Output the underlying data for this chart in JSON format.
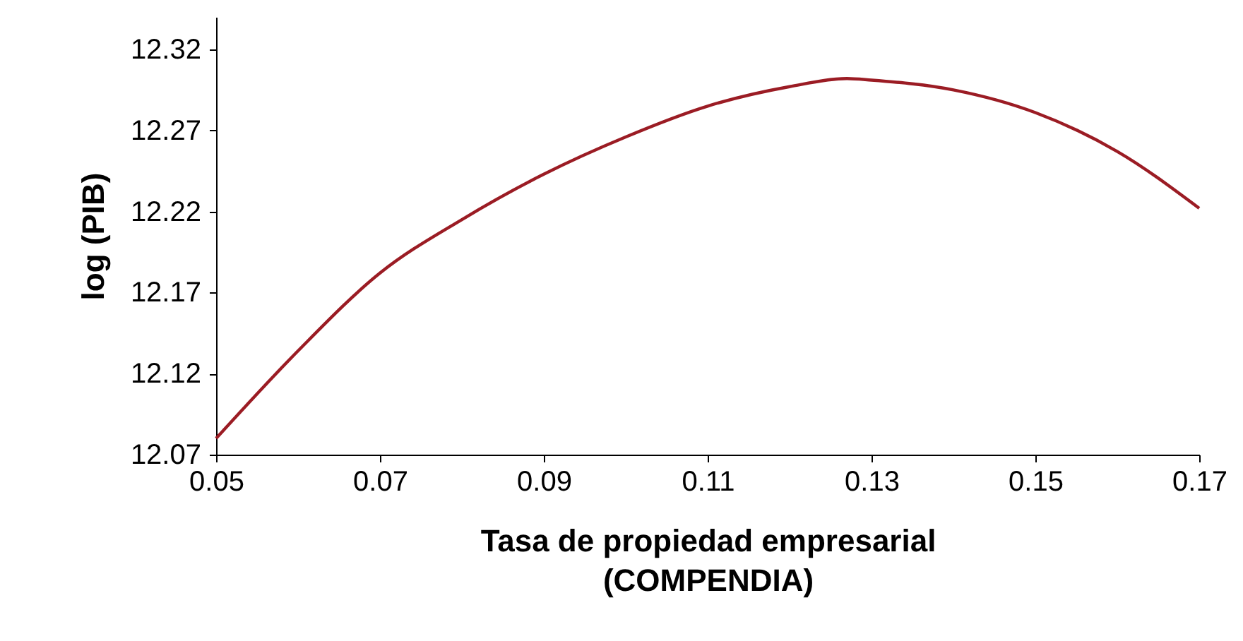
{
  "chart_data": {
    "type": "line",
    "xlabel": "Tasa de propiedad  empresarial\n(COMPENDIA)",
    "ylabel": "log (PIB)",
    "x": [
      0.05,
      0.06,
      0.07,
      0.08,
      0.09,
      0.1,
      0.11,
      0.12,
      0.127,
      0.13,
      0.14,
      0.15,
      0.16,
      0.17
    ],
    "series": [
      {
        "color": "#9b1c24",
        "values": [
          12.08,
          12.134,
          12.182,
          12.215,
          12.243,
          12.266,
          12.285,
          12.297,
          12.302,
          12.301,
          12.295,
          12.281,
          12.257,
          12.222
        ]
      }
    ],
    "xlim": [
      0.05,
      0.17
    ],
    "xticks": [
      {
        "value": 0.05,
        "label": "0.05"
      },
      {
        "value": 0.07,
        "label": "0.07"
      },
      {
        "value": 0.09,
        "label": "0.09"
      },
      {
        "value": 0.11,
        "label": "0.11"
      },
      {
        "value": 0.13,
        "label": "0.13"
      },
      {
        "value": 0.15,
        "label": "0.15"
      },
      {
        "value": 0.17,
        "label": "0.17"
      }
    ],
    "ylim": [
      12.07,
      12.34
    ],
    "yticks": [
      {
        "value": 12.07,
        "label": "12.07"
      },
      {
        "value": 12.12,
        "label": "12.12"
      },
      {
        "value": 12.17,
        "label": "12.17"
      },
      {
        "value": 12.22,
        "label": "12.22"
      },
      {
        "value": 12.27,
        "label": "12.27"
      },
      {
        "value": 12.32,
        "label": "12.32"
      }
    ],
    "line_style": "solid"
  }
}
